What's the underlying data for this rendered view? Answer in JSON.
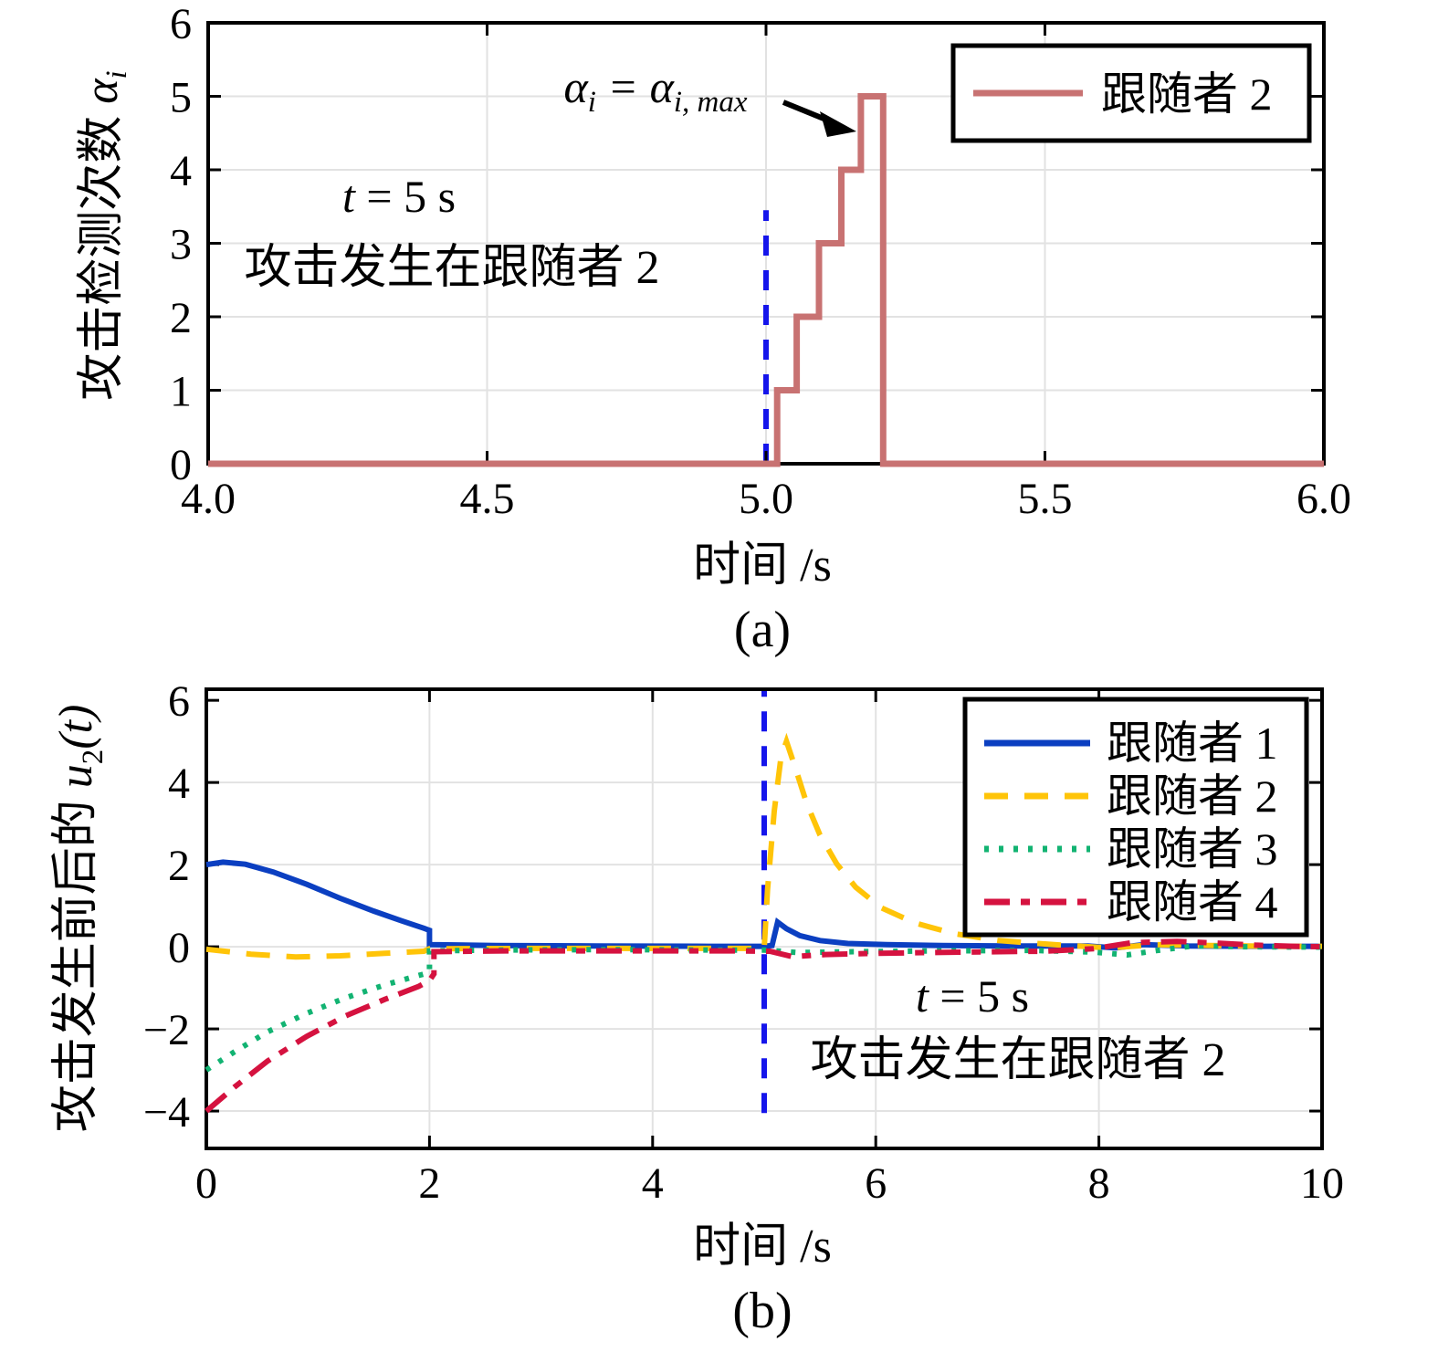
{
  "colors": {
    "background": "#ffffff",
    "grid": "#e2e2e2",
    "axis": "#000000",
    "event_line": "#1515eb",
    "follower1": "#0b3fc1",
    "follower2_b": "#ffc408",
    "follower3": "#12b372",
    "follower4": "#d5123f",
    "follower2_a": "#c87272"
  },
  "chart_data": [
    {
      "id": "a",
      "type": "line",
      "caption": "(a)",
      "xlabel": "时间 /s",
      "ylabel_cjk": "攻击检测次数 ",
      "ylabel_math": "α",
      "ylabel_sub": "i",
      "xlim": [
        4.0,
        6.0
      ],
      "ylim": [
        0,
        6
      ],
      "x_tick_vals": [
        4.0,
        4.5,
        5.0,
        5.5,
        6.0
      ],
      "x_ticks": [
        "4.0",
        "4.5",
        "5.0",
        "5.5",
        "6.0"
      ],
      "y_tick_vals": [
        0,
        1,
        2,
        3,
        4,
        5,
        6
      ],
      "y_ticks": [
        "0",
        "1",
        "2",
        "3",
        "4",
        "5",
        "6"
      ],
      "x_grid": [
        4.5,
        5.0,
        5.5
      ],
      "y_grid": [
        1,
        2,
        3,
        4,
        5
      ],
      "grid": true,
      "legend_position": "top-right",
      "event_line": {
        "x": 5.0,
        "y_from": 0,
        "y_to": 3.45,
        "color": "#1515eb",
        "dash": "22 16"
      },
      "annotation_eq": {
        "a1": "α",
        "s1": "i",
        "eq": " = ",
        "a2": "α",
        "s2": "i, max"
      },
      "note": {
        "var": "t",
        "line1_rest": " = 5 s",
        "line2": "攻击发生在跟随者 2"
      },
      "series": [
        {
          "name": "跟随者 2",
          "color": "#c87272",
          "dash": "",
          "width": 7,
          "points": [
            [
              4.0,
              0
            ],
            [
              5.0,
              0
            ],
            [
              5.02,
              0
            ],
            [
              5.02,
              1
            ],
            [
              5.055,
              1
            ],
            [
              5.055,
              2
            ],
            [
              5.095,
              2
            ],
            [
              5.095,
              3
            ],
            [
              5.135,
              3
            ],
            [
              5.135,
              4
            ],
            [
              5.17,
              4
            ],
            [
              5.17,
              5
            ],
            [
              5.21,
              5
            ],
            [
              5.21,
              0
            ],
            [
              6.0,
              0
            ]
          ]
        }
      ]
    },
    {
      "id": "b",
      "type": "line",
      "caption": "(b)",
      "xlabel": "时间 /s",
      "ylabel_cjk": "攻击发生前后的 ",
      "ylabel_math": "u",
      "ylabel_sub": "2",
      "ylabel_suffix": "(t)",
      "xlim": [
        0,
        10
      ],
      "ylim": [
        -4.91,
        6.27
      ],
      "x_tick_vals": [
        0,
        2,
        4,
        6,
        8,
        10
      ],
      "x_ticks": [
        "0",
        "2",
        "4",
        "6",
        "8",
        "10"
      ],
      "y_tick_vals": [
        -4,
        -2,
        0,
        2,
        4,
        6
      ],
      "y_ticks": [
        "−4",
        "−2",
        "0",
        "2",
        "4",
        "6"
      ],
      "x_grid": [
        2,
        4,
        6,
        8
      ],
      "y_grid": [
        -4,
        -2,
        0,
        2,
        4
      ],
      "grid": true,
      "legend_position": "top-right",
      "event_line": {
        "x": 5.0,
        "y_from": -4.05,
        "y_to": 6.27,
        "color": "#1515eb",
        "dash": "22 16"
      },
      "note": {
        "var": "t",
        "line1_rest": " = 5 s",
        "line2": "攻击发生在跟随者 2"
      },
      "series": [
        {
          "name": "跟随者 1",
          "color": "#0b3fc1",
          "dash": "",
          "width": 6,
          "points": [
            [
              0,
              2.0
            ],
            [
              0.15,
              2.06
            ],
            [
              0.35,
              2.01
            ],
            [
              0.6,
              1.82
            ],
            [
              0.9,
              1.52
            ],
            [
              1.2,
              1.18
            ],
            [
              1.5,
              0.87
            ],
            [
              1.75,
              0.63
            ],
            [
              1.95,
              0.45
            ],
            [
              2.0,
              0.4
            ],
            [
              2.0,
              0.05
            ],
            [
              2.6,
              0.03
            ],
            [
              3.5,
              0.02
            ],
            [
              4.5,
              0.01
            ],
            [
              5.0,
              0.01
            ],
            [
              5.07,
              0.03
            ],
            [
              5.12,
              0.6
            ],
            [
              5.2,
              0.44
            ],
            [
              5.32,
              0.27
            ],
            [
              5.5,
              0.15
            ],
            [
              5.75,
              0.08
            ],
            [
              6.1,
              0.05
            ],
            [
              6.6,
              0.03
            ],
            [
              7.2,
              0.02
            ],
            [
              7.9,
              0.02
            ],
            [
              8.15,
              -0.03
            ],
            [
              8.4,
              0.05
            ],
            [
              8.8,
              0.02
            ],
            [
              9.4,
              0.01
            ],
            [
              10,
              0.01
            ]
          ]
        },
        {
          "name": "跟随者 2",
          "color": "#ffc408",
          "dash": "26 18",
          "width": 6,
          "points": [
            [
              0,
              -0.06
            ],
            [
              0.4,
              -0.18
            ],
            [
              0.8,
              -0.25
            ],
            [
              1.2,
              -0.22
            ],
            [
              1.6,
              -0.16
            ],
            [
              1.95,
              -0.11
            ],
            [
              2.0,
              -0.05
            ],
            [
              2.8,
              -0.04
            ],
            [
              3.8,
              -0.04
            ],
            [
              5.0,
              -0.04
            ],
            [
              5.03,
              1.4
            ],
            [
              5.09,
              3.3
            ],
            [
              5.15,
              4.6
            ],
            [
              5.2,
              5.0
            ],
            [
              5.28,
              4.35
            ],
            [
              5.38,
              3.5
            ],
            [
              5.5,
              2.72
            ],
            [
              5.65,
              2.02
            ],
            [
              5.82,
              1.45
            ],
            [
              6.05,
              0.95
            ],
            [
              6.35,
              0.58
            ],
            [
              6.7,
              0.32
            ],
            [
              7.1,
              0.15
            ],
            [
              7.6,
              0.05
            ],
            [
              8.1,
              -0.03
            ],
            [
              8.5,
              0.05
            ],
            [
              9.0,
              0.03
            ],
            [
              9.6,
              0.01
            ],
            [
              10,
              0.01
            ]
          ]
        },
        {
          "name": "跟随者 3",
          "color": "#12b372",
          "dash": "5 11",
          "width": 6,
          "points": [
            [
              0,
              -3.0
            ],
            [
              0.25,
              -2.56
            ],
            [
              0.55,
              -2.07
            ],
            [
              0.9,
              -1.62
            ],
            [
              1.25,
              -1.24
            ],
            [
              1.6,
              -0.93
            ],
            [
              1.9,
              -0.7
            ],
            [
              2.0,
              -0.63
            ],
            [
              2.0,
              -0.1
            ],
            [
              2.6,
              -0.08
            ],
            [
              3.6,
              -0.07
            ],
            [
              4.6,
              -0.08
            ],
            [
              5.0,
              -0.08
            ],
            [
              5.3,
              -0.14
            ],
            [
              5.8,
              -0.12
            ],
            [
              6.6,
              -0.1
            ],
            [
              7.4,
              -0.09
            ],
            [
              7.95,
              -0.13
            ],
            [
              8.25,
              -0.2
            ],
            [
              8.55,
              -0.08
            ],
            [
              8.85,
              0.02
            ],
            [
              9.3,
              0.0
            ],
            [
              10,
              -0.01
            ]
          ]
        },
        {
          "name": "跟随者 4",
          "color": "#d5123f",
          "dash": "28 12 10 12",
          "width": 6,
          "points": [
            [
              0,
              -4.0
            ],
            [
              0.25,
              -3.42
            ],
            [
              0.55,
              -2.78
            ],
            [
              0.9,
              -2.18
            ],
            [
              1.25,
              -1.68
            ],
            [
              1.6,
              -1.28
            ],
            [
              1.9,
              -0.97
            ],
            [
              2.0,
              -0.82
            ],
            [
              2.04,
              -0.66
            ],
            [
              2.04,
              -0.12
            ],
            [
              2.7,
              -0.1
            ],
            [
              3.7,
              -0.1
            ],
            [
              4.7,
              -0.1
            ],
            [
              5.05,
              -0.11
            ],
            [
              5.25,
              -0.24
            ],
            [
              5.55,
              -0.19
            ],
            [
              6.0,
              -0.16
            ],
            [
              6.8,
              -0.13
            ],
            [
              7.5,
              -0.11
            ],
            [
              7.95,
              -0.05
            ],
            [
              8.3,
              0.1
            ],
            [
              8.7,
              0.13
            ],
            [
              9.05,
              0.09
            ],
            [
              9.4,
              0.04
            ],
            [
              9.75,
              0.01
            ],
            [
              10,
              0.0
            ]
          ]
        }
      ]
    }
  ]
}
